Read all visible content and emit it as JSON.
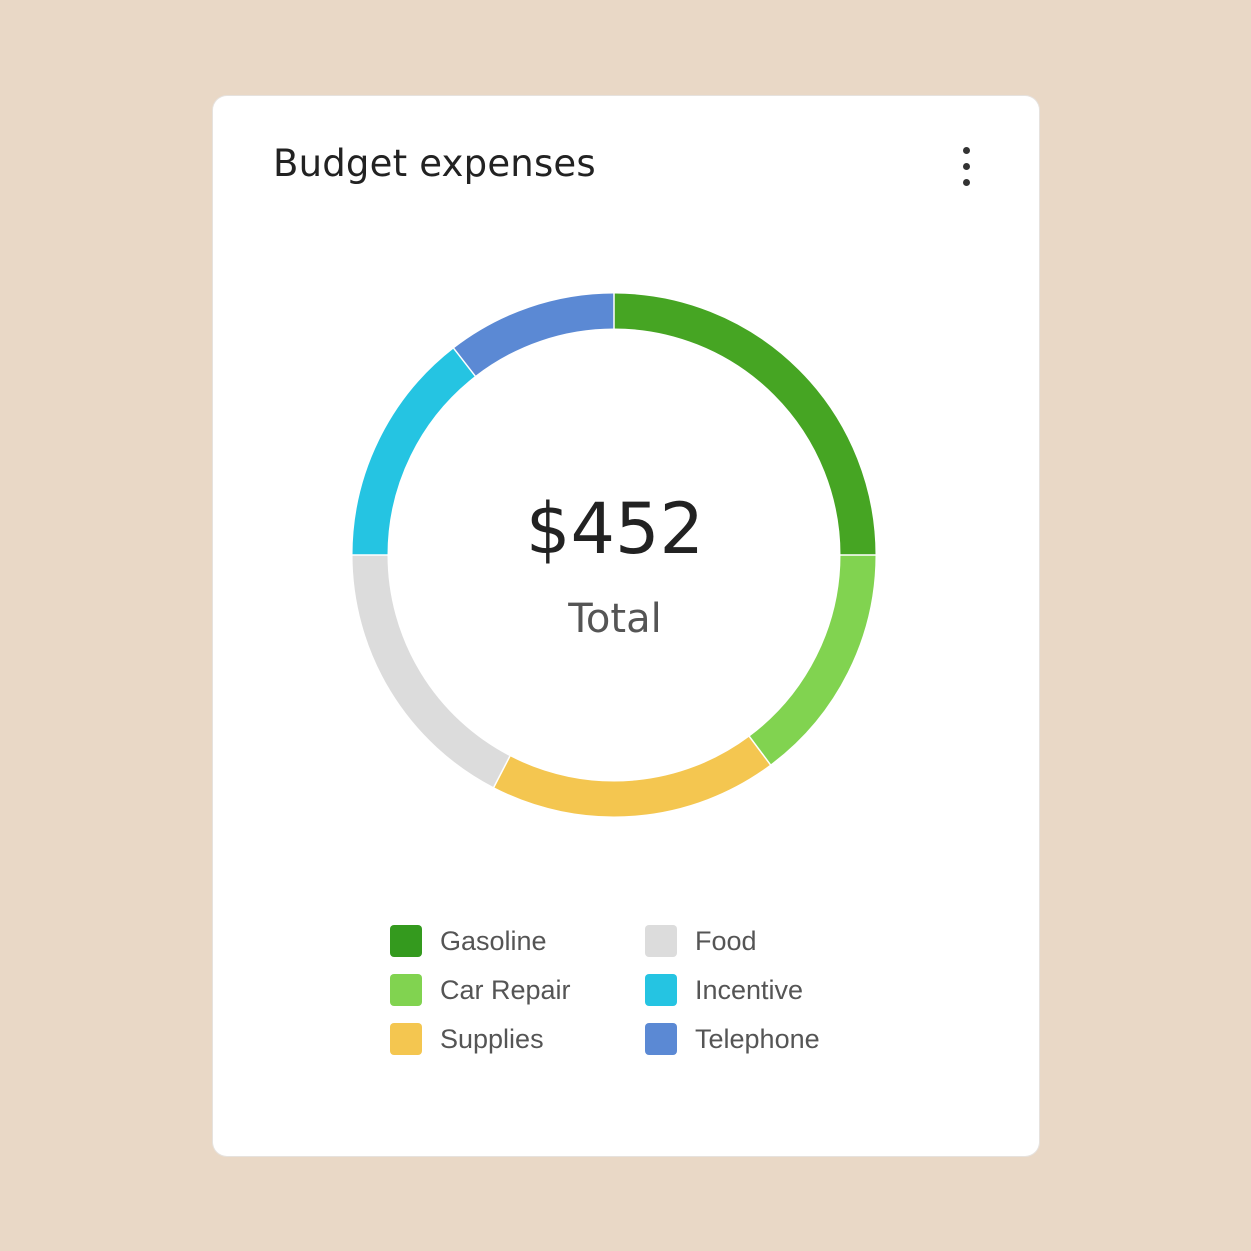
{
  "card": {
    "title": "Budget expenses",
    "menu_icon": "more-vert-icon"
  },
  "colors": {
    "background": "#e9d8c6",
    "card": "#ffffff",
    "text_primary": "#222222",
    "text_secondary": "#555555"
  },
  "chart_data": {
    "type": "pie",
    "variant": "donut",
    "center_value": "$452",
    "center_label": "Total",
    "legend_position": "bottom",
    "slices": [
      {
        "name": "Gasoline",
        "share": 0.25,
        "color": "#46a523",
        "legend_color": "#349a1e"
      },
      {
        "name": "Car Repair",
        "share": 0.148,
        "color": "#81d350",
        "legend_color": "#81d350"
      },
      {
        "name": "Supplies",
        "share": 0.178,
        "color": "#f4c650",
        "legend_color": "#f4c650"
      },
      {
        "name": "Food",
        "share": 0.174,
        "color": "#dcdcdc",
        "legend_color": "#dcdcdc"
      },
      {
        "name": "Incentive",
        "share": 0.145,
        "color": "#25c4e2",
        "legend_color": "#25c4e2"
      },
      {
        "name": "Telephone",
        "share": 0.105,
        "color": "#5b89d4",
        "legend_color": "#5b89d4"
      }
    ]
  }
}
